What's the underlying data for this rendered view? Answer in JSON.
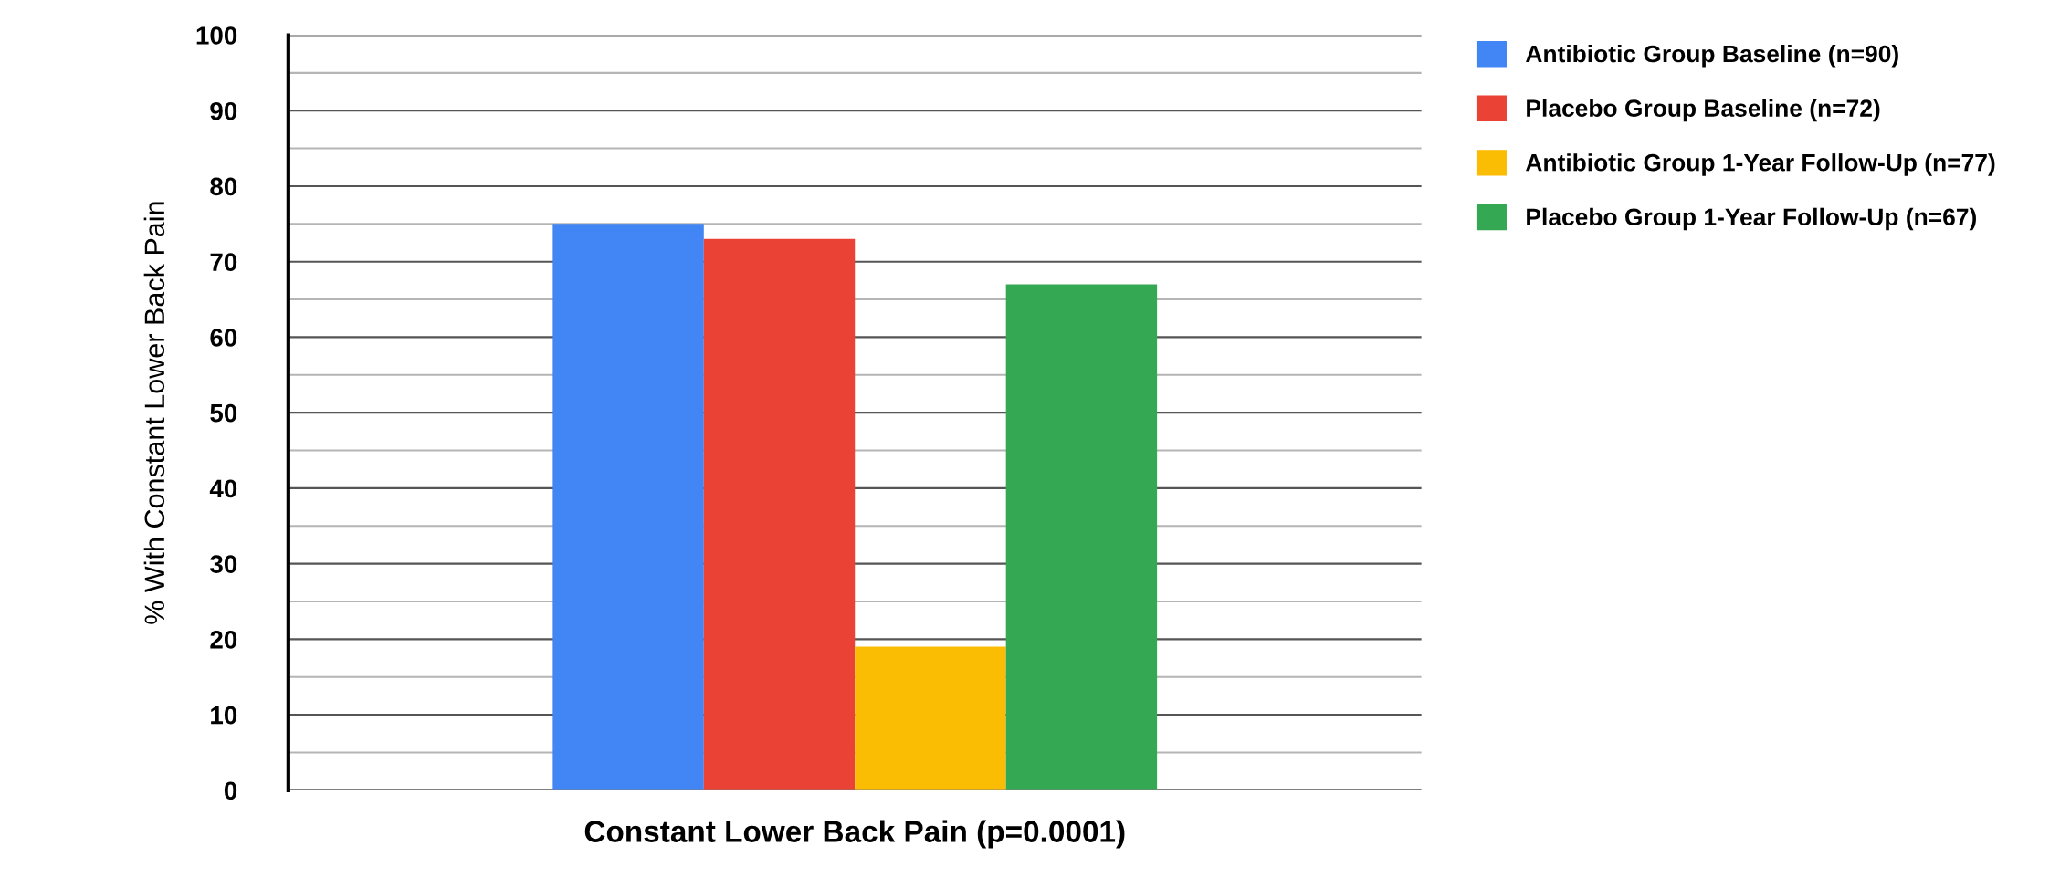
{
  "chart_data": {
    "type": "bar",
    "xlabel": "Constant Lower Back Pain (p=0.0001)",
    "ylabel": "% With Constant Lower Back Pain",
    "categories": [
      null
    ],
    "series": [
      {
        "name": "Antibiotic Group Baseline (n=90)",
        "color": "#4285f4",
        "values": [
          75
        ]
      },
      {
        "name": "Placebo Group Baseline (n=72)",
        "color": "#ea4335",
        "values": [
          73
        ]
      },
      {
        "name": "Antibiotic Group 1-Year Follow-Up (n=77)",
        "color": "#fbbc04",
        "values": [
          19
        ]
      },
      {
        "name": "Placebo Group 1-Year Follow-Up (n=67)",
        "color": "#34a853",
        "values": [
          67
        ]
      }
    ],
    "ylim": [
      0,
      100
    ],
    "yticks": [
      0,
      {
        "value": 5,
        "label": null
      },
      10,
      {
        "value": 15,
        "label": null
      },
      20,
      {
        "value": 25,
        "label": null
      },
      30,
      {
        "value": 35,
        "label": null
      },
      40,
      {
        "value": 45,
        "label": null
      },
      50,
      {
        "value": 55,
        "label": null
      },
      60,
      {
        "value": 65,
        "label": null
      },
      70,
      {
        "value": 75,
        "label": null
      },
      80,
      {
        "value": 85,
        "label": null
      },
      90,
      {
        "value": 95,
        "label": null
      },
      100
    ],
    "grid": true,
    "legend": "top right"
  }
}
